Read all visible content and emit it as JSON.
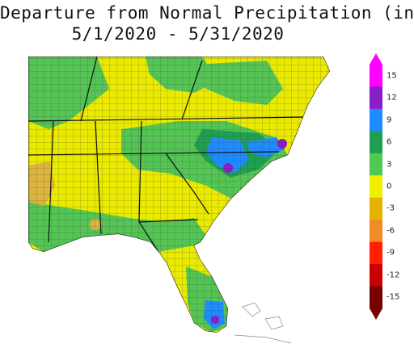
{
  "title": {
    "line1": "Departure from Normal Precipitation (in)",
    "line2": "5/1/2020 - 5/31/2020"
  },
  "legend": {
    "ticks": [
      "15",
      "12",
      "9",
      "6",
      "3",
      "0",
      "-3",
      "-6",
      "-9",
      "-12",
      "-15"
    ],
    "colors_top_to_bottom": [
      "#ff00ff",
      "#8a1ec8",
      "#1e8cff",
      "#1ea050",
      "#52c852",
      "#f0f000",
      "#e6b400",
      "#f08c28",
      "#ff1e00",
      "#c80000",
      "#780000"
    ]
  },
  "colors": {
    "wetter_green": "#54c454",
    "near_normal_yellow": "#eaea00",
    "dry_gold": "#dcb43c",
    "dark_green": "#1ea050",
    "blue": "#1e8cff",
    "purple": "#8a1ec8",
    "ocean": "#ffffff",
    "county_lines": "#3a3a3a"
  }
}
